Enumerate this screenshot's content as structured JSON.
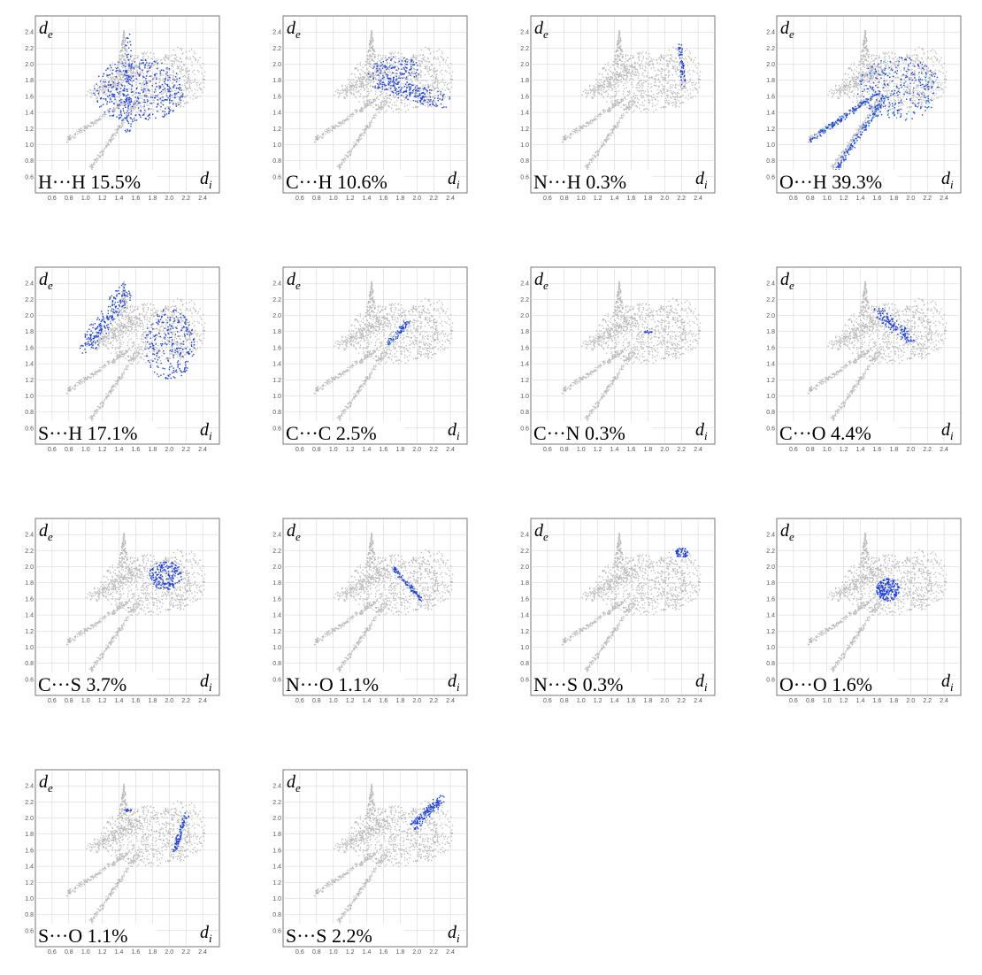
{
  "chart_data": {
    "type": "scatter",
    "description_free": true,
    "axis": {
      "xlabel": "d",
      "xlabel_sub": "i",
      "ylabel": "d",
      "ylabel_sub": "e",
      "xlim": [
        0.4,
        2.6
      ],
      "ylim": [
        0.4,
        2.6
      ],
      "x_ticks": [
        "0.6",
        "0.8",
        "1.0",
        "1.2",
        "1.4",
        "1.6",
        "1.8",
        "2.0",
        "2.2",
        "2.4"
      ],
      "y_ticks": [
        "0.6",
        "0.8",
        "1.0",
        "1.2",
        "1.4",
        "1.6",
        "1.8",
        "2.0",
        "2.2",
        "2.4"
      ],
      "grid": true
    },
    "colors": {
      "background_points": "#b8b8b8",
      "highlight_points": "#1a3ee6",
      "highlight_dense": "#22c0d8",
      "grid": "#d0d0d0",
      "frame": "#555555"
    },
    "panels": [
      {
        "contact": "H···H",
        "percent": "15.5%",
        "value": 15.5
      },
      {
        "contact": "C···H",
        "percent": "10.6%",
        "value": 10.6
      },
      {
        "contact": "N···H",
        "percent": "0.3%",
        "value": 0.3
      },
      {
        "contact": "O···H",
        "percent": "39.3%",
        "value": 39.3
      },
      {
        "contact": "S···H",
        "percent": "17.1%",
        "value": 17.1
      },
      {
        "contact": "C···C",
        "percent": "2.5%",
        "value": 2.5
      },
      {
        "contact": "C···N",
        "percent": "0.3%",
        "value": 0.3
      },
      {
        "contact": "C···O",
        "percent": "4.4%",
        "value": 4.4
      },
      {
        "contact": "C···S",
        "percent": "3.7%",
        "value": 3.7
      },
      {
        "contact": "N···O",
        "percent": "1.1%",
        "value": 1.1
      },
      {
        "contact": "N···S",
        "percent": "0.3%",
        "value": 0.3
      },
      {
        "contact": "O···O",
        "percent": "1.6%",
        "value": 1.6
      },
      {
        "contact": "S···O",
        "percent": "1.1%",
        "value": 1.1
      },
      {
        "contact": "S···S",
        "percent": "2.2%",
        "value": 2.2
      }
    ]
  }
}
